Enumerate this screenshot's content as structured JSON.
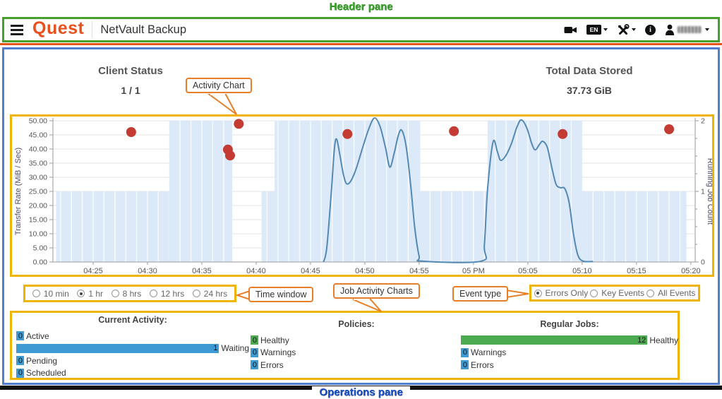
{
  "annotations": {
    "header_pane": "Header pane",
    "operations_pane": "Operations pane",
    "callout_activity_chart": "Activity Chart",
    "callout_time_window": "Time window",
    "callout_job_activity": "Job Activity Charts",
    "callout_event_type": "Event type"
  },
  "header": {
    "brand": "Quest",
    "app_title": "NetVault Backup",
    "language_badge": "EN",
    "icons": [
      "menu-icon",
      "video-tutorial-icon",
      "language-icon",
      "tools-icon",
      "info-icon",
      "user-icon"
    ]
  },
  "status": {
    "client_status_label": "Client Status",
    "client_status_value": "1 / 1",
    "total_data_label": "Total Data Stored",
    "total_data_value": "37.73 GiB"
  },
  "time_window": {
    "options": [
      "10 min",
      "1 hr",
      "8 hrs",
      "12 hrs",
      "24 hrs"
    ],
    "selected": "1 hr"
  },
  "event_type": {
    "options": [
      "Errors Only",
      "Key Events",
      "All Events"
    ],
    "selected": "Errors Only"
  },
  "chart_data": {
    "type": "line",
    "title": "Activity Chart",
    "left_axis": {
      "label": "Transfer Rate (MiB / Sec)",
      "range": [
        0,
        50
      ],
      "tick_labels": [
        "0.00",
        "5.00",
        "10.00",
        "15.00",
        "20.00",
        "25.00",
        "30.00",
        "35.00",
        "40.00",
        "45.00",
        "50.00"
      ]
    },
    "right_axis": {
      "label": "Running Job Count",
      "range": [
        0,
        2
      ],
      "tick_labels": [
        "0",
        "1",
        "2"
      ]
    },
    "x_axis": {
      "tick_labels": [
        "04:25",
        "04:30",
        "04:35",
        "04:40",
        "04:45",
        "04:50",
        "04:55",
        "05 PM",
        "05:05",
        "05:10",
        "05:15",
        "05:20"
      ],
      "tick_minutes": [
        25,
        30,
        35,
        40,
        45,
        50,
        55,
        60,
        65,
        70,
        75,
        80
      ],
      "domain_minutes": [
        21.3,
        80.4
      ]
    },
    "series": [
      {
        "name": "Running Job Count",
        "type": "step-area",
        "axis": "right",
        "fill": "#dce9f8",
        "segments": [
          [
            21.6,
            32.0,
            1
          ],
          [
            32.0,
            37.8,
            2
          ],
          [
            37.8,
            40.5,
            0
          ],
          [
            40.5,
            41.7,
            1
          ],
          [
            41.7,
            55.1,
            2
          ],
          [
            55.1,
            61.3,
            1
          ],
          [
            61.3,
            70.0,
            2
          ],
          [
            70.0,
            79.6,
            1
          ]
        ]
      },
      {
        "name": "Transfer Rate",
        "type": "line",
        "axis": "left",
        "color": "#5389b5",
        "points": [
          [
            46.2,
            0
          ],
          [
            46.5,
            5
          ],
          [
            46.9,
            24
          ],
          [
            47.2,
            40
          ],
          [
            47.4,
            43.5
          ],
          [
            47.7,
            38
          ],
          [
            48.0,
            31.5
          ],
          [
            48.3,
            27.8
          ],
          [
            48.7,
            28.6
          ],
          [
            49.2,
            33
          ],
          [
            49.8,
            40.5
          ],
          [
            50.4,
            47.5
          ],
          [
            50.9,
            51
          ],
          [
            51.4,
            48
          ],
          [
            51.9,
            40.5
          ],
          [
            52.3,
            33.6
          ],
          [
            52.7,
            38.5
          ],
          [
            53.1,
            45
          ],
          [
            53.4,
            46.6
          ],
          [
            53.8,
            41
          ],
          [
            54.2,
            28
          ],
          [
            54.6,
            12
          ],
          [
            55.0,
            2
          ],
          [
            55.3,
            0.3
          ],
          [
            60.7,
            0.3
          ],
          [
            61.0,
            6
          ],
          [
            61.3,
            26
          ],
          [
            61.8,
            42.5
          ],
          [
            62.2,
            39
          ],
          [
            62.5,
            36
          ],
          [
            63.0,
            37.8
          ],
          [
            63.5,
            42
          ],
          [
            64.0,
            47.8
          ],
          [
            64.4,
            50.3
          ],
          [
            64.9,
            47.5
          ],
          [
            65.4,
            41.5
          ],
          [
            65.7,
            39.7
          ],
          [
            66.1,
            41.8
          ],
          [
            66.4,
            42.7
          ],
          [
            66.8,
            40.5
          ],
          [
            67.2,
            33.5
          ],
          [
            67.6,
            27.5
          ],
          [
            68.0,
            26.3
          ],
          [
            68.4,
            26.0
          ],
          [
            68.8,
            21
          ],
          [
            69.2,
            10
          ],
          [
            69.6,
            2.5
          ],
          [
            70.1,
            0.3
          ],
          [
            71.0,
            0.2
          ]
        ]
      },
      {
        "name": "Error Events",
        "type": "scatter",
        "axis": "left",
        "color": "#c33b32",
        "points": [
          [
            28.5,
            46
          ],
          [
            37.4,
            39.8
          ],
          [
            37.6,
            37.7
          ],
          [
            38.4,
            48.9
          ],
          [
            48.4,
            45.3
          ],
          [
            58.2,
            46.3
          ],
          [
            68.2,
            45.3
          ],
          [
            78.0,
            47.0
          ]
        ]
      }
    ],
    "grid": {
      "horizontal": true,
      "vertical_minute_lines_in_shade": true
    }
  },
  "operations": {
    "groups": [
      {
        "title": "Current Activity:",
        "rows": [
          {
            "value": 0,
            "label": "Active",
            "color": "#3d9ad3"
          },
          {
            "value": 1,
            "label": "Waiting",
            "color": "#3d9ad3"
          },
          {
            "value": 0,
            "label": "Pending",
            "color": "#3d9ad3"
          },
          {
            "value": 0,
            "label": "Scheduled",
            "color": "#3d9ad3"
          }
        ]
      },
      {
        "title": "Policies:",
        "rows": [
          {
            "value": 0,
            "label": "Healthy",
            "color": "#4cab51"
          },
          {
            "value": 0,
            "label": "Warnings",
            "color": "#3d9ad3"
          },
          {
            "value": 0,
            "label": "Errors",
            "color": "#3d9ad3"
          }
        ]
      },
      {
        "title": "Regular Jobs:",
        "rows": [
          {
            "value": 12,
            "label": "Healthy",
            "color": "#4cab51"
          },
          {
            "value": 0,
            "label": "Warnings",
            "color": "#3d9ad3"
          },
          {
            "value": 0,
            "label": "Errors",
            "color": "#3d9ad3"
          }
        ]
      }
    ]
  },
  "colors": {
    "brand_orange": "#e8501d",
    "header_border_green": "#45a12b",
    "pane_border_blue": "#507fd1",
    "highlight_yellow": "#efb400",
    "callout_orange": "#e87e27",
    "chart_line_blue": "#5389b5",
    "event_dot_red": "#c33b32",
    "job_shade_blue": "#dce9f8",
    "bar_blue": "#3d9ad3",
    "bar_green": "#4cab51"
  }
}
